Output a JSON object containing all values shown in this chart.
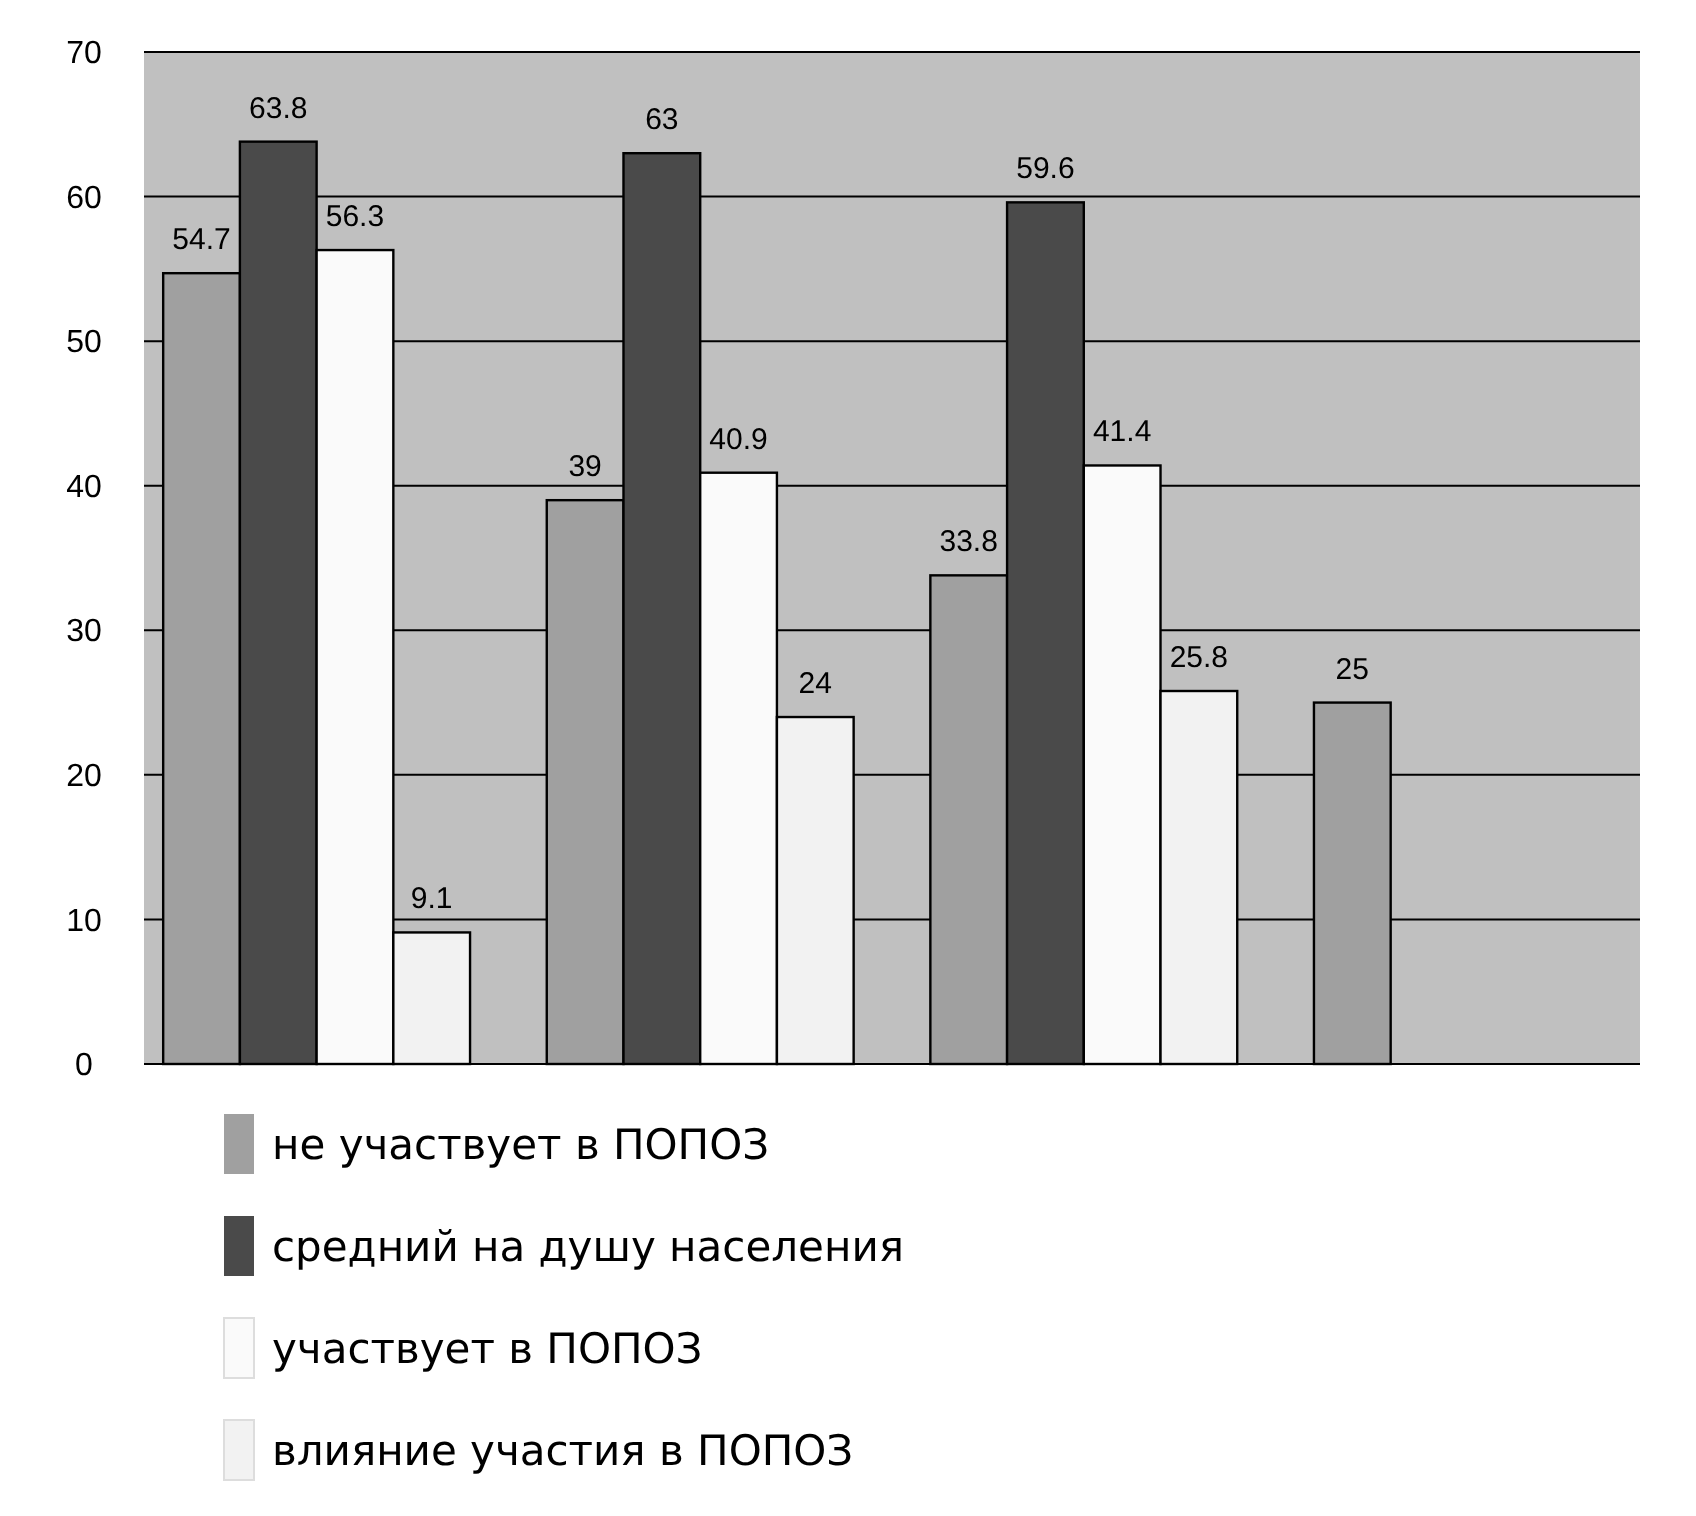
{
  "chart_data": {
    "type": "bar",
    "categories": [
      null,
      null,
      null,
      null
    ],
    "series": [
      {
        "name": "не участвует в ПОПОЗ",
        "color": "#a0a0a0",
        "values": [
          54.7,
          39,
          33.8,
          25
        ]
      },
      {
        "name": "средний на душу населения",
        "color": "#4a4a4a",
        "values": [
          63.8,
          63,
          59.6,
          null
        ]
      },
      {
        "name": "участвует в ПОПОЗ",
        "color": "#fafafa",
        "values": [
          56.3,
          40.9,
          41.4,
          null
        ]
      },
      {
        "name": "влияние участия в ПОПОЗ",
        "color": "#f2f2f2",
        "values": [
          9.1,
          24,
          25.8,
          null
        ]
      }
    ],
    "ylim": [
      0,
      70
    ],
    "yticks": [
      0,
      10,
      20,
      30,
      40,
      50,
      60,
      70
    ],
    "grid": "y",
    "legend": "bottom",
    "data_labels": true
  }
}
